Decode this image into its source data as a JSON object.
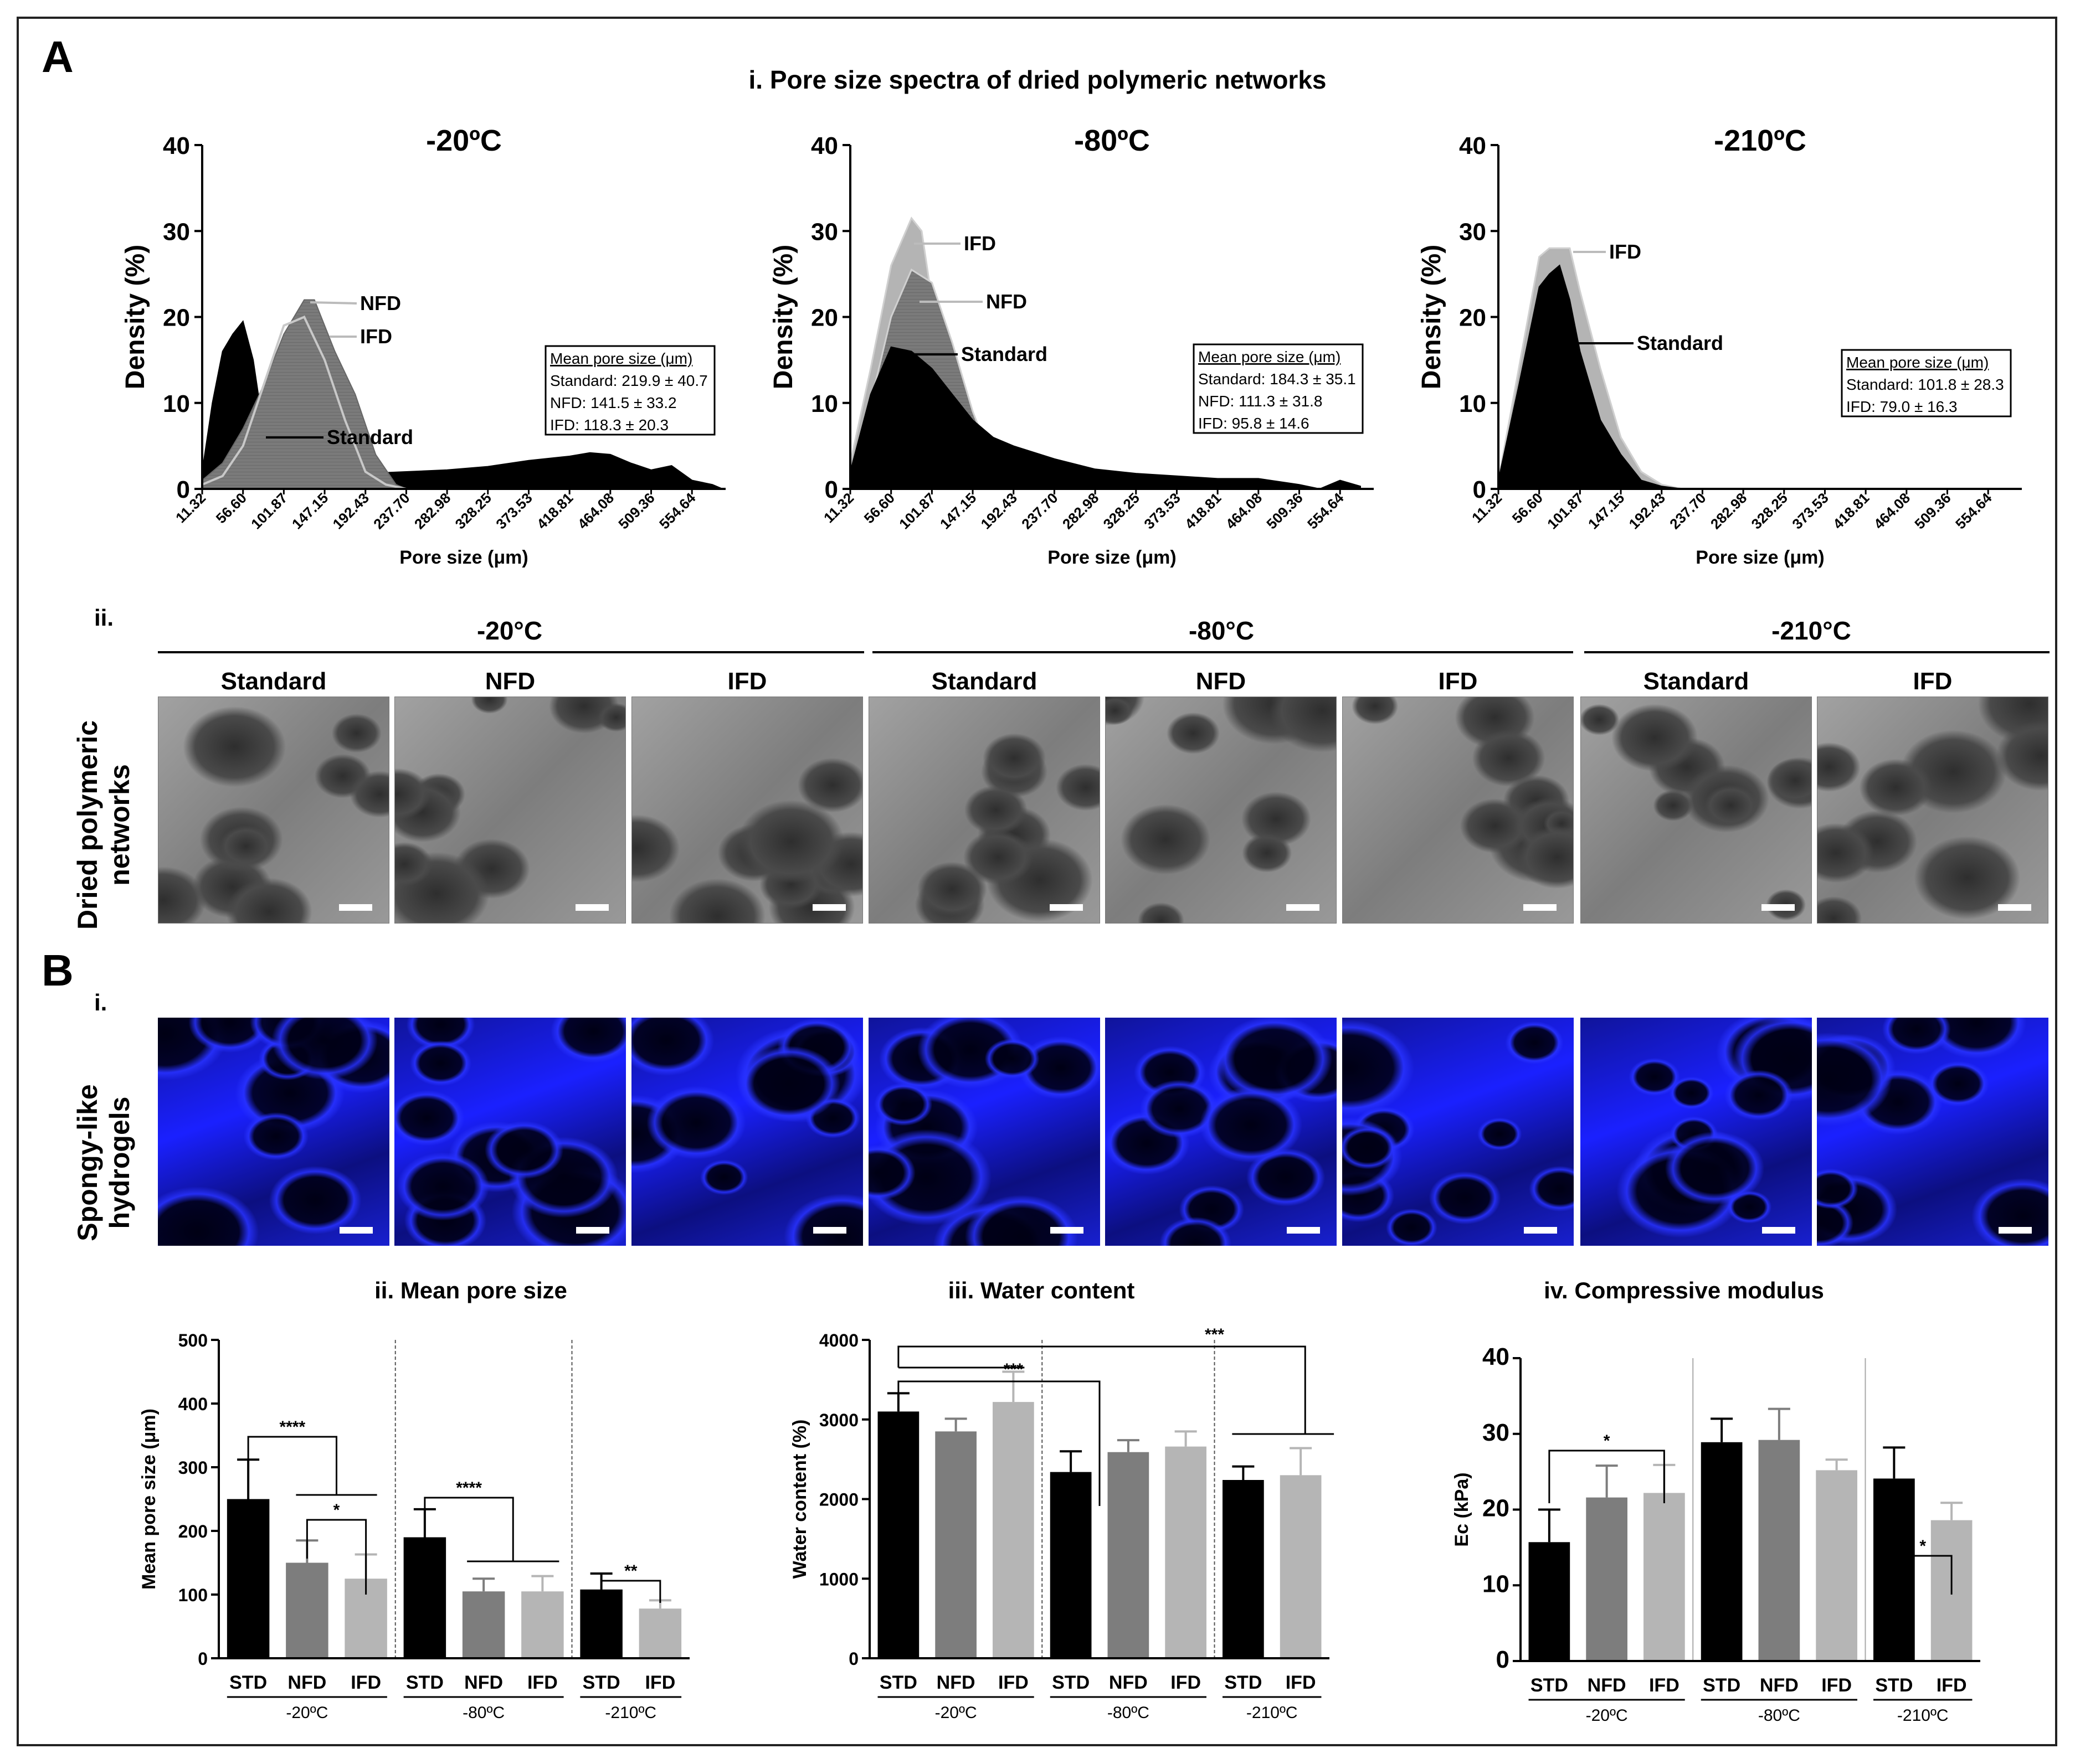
{
  "panel_labels": {
    "A": "A",
    "B": "B"
  },
  "sections": {
    "a_i_title": "i. Pore size spectra of dried polymeric networks",
    "a_ii": "ii.",
    "b_i": "i.",
    "b_ii_title": "ii. Mean pore size",
    "b_iii_title": "iii. Water content",
    "b_iv_title": "iv. Compressive modulus"
  },
  "row_labels": {
    "dried": [
      "Dried polymeric",
      "networks"
    ],
    "spongy": [
      "Spongy-like",
      "hydrogels"
    ]
  },
  "temperatures": [
    "-20°C",
    "-80°C",
    "-210°C"
  ],
  "image_columns": [
    "Standard",
    "NFD",
    "IFD",
    "Standard",
    "NFD",
    "IFD",
    "Standard",
    "IFD"
  ],
  "colors": {
    "standard": "#000000",
    "nfd": "#7a7a7a",
    "ifd": "#b4b4b4",
    "ifd_line": "#c8c8c8",
    "sem_gray": "#8d8d8d",
    "confocal_blue": "#1a20ff"
  },
  "chart_data": [
    {
      "type": "area",
      "title": "-20ºC",
      "xlabel": "Pore size (μm)",
      "ylabel": "Density (%)",
      "ylim": [
        0,
        40
      ],
      "yticks": [
        "0",
        "10",
        "20",
        "30",
        "40"
      ],
      "x": [
        "11.32",
        "56.60",
        "101.87",
        "147.15",
        "192.43",
        "237.70",
        "282.98",
        "328.25",
        "373.53",
        "418.81",
        "464.08",
        "509.36",
        "554.64"
      ],
      "series": [
        {
          "name": "Standard",
          "x": [
            11.32,
            22.64,
            33.96,
            45.28,
            56.6,
            67.92,
            79.23,
            90.55,
            101.87,
            124.51,
            147.15,
            192.43,
            237.7,
            282.98,
            328.25,
            373.53,
            418.81,
            441.45,
            464.08,
            486.72,
            509.36,
            532.0,
            554.64,
            577.28,
            588.6
          ],
          "y": [
            2,
            10,
            16,
            18,
            19.5,
            15,
            7,
            2,
            1,
            1,
            1.2,
            1.8,
            2,
            2.2,
            2.6,
            3.3,
            3.8,
            4.2,
            4,
            3,
            2.2,
            2.7,
            1,
            0.5,
            0
          ]
        },
        {
          "name": "NFD",
          "x": [
            11.32,
            33.96,
            56.6,
            79.23,
            101.87,
            124.51,
            135.83,
            158.47,
            181.11,
            203.75,
            226.39,
            237.7
          ],
          "y": [
            1,
            3,
            7,
            12,
            18,
            22,
            22,
            16,
            11,
            4,
            0.5,
            0
          ]
        },
        {
          "name": "IFD",
          "x": [
            11.32,
            33.96,
            56.6,
            79.23,
            101.87,
            124.51,
            147.15,
            169.79,
            192.43,
            215.07,
            237.7
          ],
          "y": [
            0.5,
            1.5,
            5,
            12,
            19,
            20,
            15,
            8,
            2,
            0.5,
            0
          ]
        }
      ],
      "box": {
        "title": "Mean pore size (μm)",
        "lines": [
          "Standard: 219.9 ± 40.7",
          "NFD: 141.5 ±  33.2",
          "IFD: 118.3 ± 20.3"
        ]
      },
      "callouts": [
        "NFD",
        "IFD",
        "Standard"
      ]
    },
    {
      "type": "area",
      "title": "-80ºC",
      "xlabel": "Pore size (μm)",
      "ylabel": "Density (%)",
      "ylim": [
        0,
        40
      ],
      "yticks": [
        "0",
        "10",
        "20",
        "30",
        "40"
      ],
      "x": [
        "11.32",
        "56.60",
        "101.87",
        "147.15",
        "192.43",
        "237.70",
        "282.98",
        "328.25",
        "373.53",
        "418.81",
        "464.08",
        "509.36",
        "554.64"
      ],
      "series": [
        {
          "name": "IFD",
          "x": [
            11.32,
            33.96,
            56.6,
            79.23,
            90.55,
            101.87,
            124.51,
            147.15,
            169.79,
            192.43,
            203.75
          ],
          "y": [
            3,
            14,
            26,
            31.5,
            30,
            22,
            13,
            7,
            2,
            0.5,
            0
          ]
        },
        {
          "name": "NFD",
          "x": [
            11.32,
            33.96,
            56.6,
            79.23,
            101.87,
            124.51,
            147.15,
            169.79,
            192.43
          ],
          "y": [
            2,
            10,
            20,
            25.5,
            24,
            17,
            9,
            3,
            0
          ]
        },
        {
          "name": "Standard",
          "x": [
            11.32,
            33.96,
            56.6,
            79.23,
            101.87,
            124.51,
            147.15,
            169.79,
            192.43,
            237.7,
            282.98,
            328.25,
            373.53,
            418.81,
            464.08,
            509.36,
            532.0,
            554.64,
            577.28
          ],
          "y": [
            2,
            11,
            16.5,
            16,
            14,
            11,
            8,
            6,
            5,
            3.5,
            2.3,
            1.8,
            1.5,
            1.2,
            1.2,
            0.5,
            0,
            1,
            0.3
          ]
        }
      ],
      "box": {
        "title": "Mean pore size (μm)",
        "lines": [
          "Standard: 184.3 ± 35.1",
          "NFD: 111.3 ±  31.8",
          "IFD: 95.8 ± 14.6"
        ]
      },
      "callouts": [
        "IFD",
        "NFD",
        "Standard"
      ]
    },
    {
      "type": "area",
      "title": "-210ºC",
      "xlabel": "Pore size (μm)",
      "ylabel": "Density (%)",
      "ylim": [
        0,
        40
      ],
      "yticks": [
        "0",
        "10",
        "20",
        "30",
        "40"
      ],
      "x": [
        "11.32",
        "56.60",
        "101.87",
        "147.15",
        "192.43",
        "237.70",
        "282.98",
        "328.25",
        "373.53",
        "418.81",
        "464.08",
        "509.36",
        "554.64"
      ],
      "series": [
        {
          "name": "IFD",
          "x": [
            11.32,
            33.96,
            56.6,
            67.92,
            90.55,
            101.87,
            124.51,
            147.15,
            169.79,
            192.43,
            215.07
          ],
          "y": [
            1,
            14,
            27,
            28,
            28,
            23,
            14,
            6,
            2,
            0.5,
            0
          ]
        },
        {
          "name": "Standard",
          "x": [
            11.32,
            33.96,
            56.6,
            67.92,
            79.23,
            90.55,
            101.87,
            124.51,
            147.15,
            169.79,
            192.43,
            215.07
          ],
          "y": [
            1,
            12,
            23.5,
            25,
            26,
            22,
            16,
            8,
            4,
            1,
            0.3,
            0
          ]
        }
      ],
      "box": {
        "title": "Mean pore size (μm)",
        "lines": [
          "Standard: 101.8 ± 28.3",
          "IFD: 79.0 ± 16.3"
        ]
      },
      "callouts": [
        "IFD",
        "Standard"
      ]
    },
    {
      "type": "bar",
      "ylabel": "Mean pore size (μm)",
      "ylim": [
        0,
        500
      ],
      "yticks": [
        "0",
        "100",
        "200",
        "300",
        "400",
        "500"
      ],
      "groups": [
        {
          "label": "-20ºC",
          "categories": [
            "STD",
            "NFD",
            "IFD"
          ],
          "values": [
            250,
            150,
            125
          ],
          "errors": [
            62,
            35,
            38
          ]
        },
        {
          "label": "-80ºC",
          "categories": [
            "STD",
            "NFD",
            "IFD"
          ],
          "values": [
            190,
            105,
            105
          ],
          "errors": [
            44,
            20,
            24
          ]
        },
        {
          "label": "-210ºC",
          "categories": [
            "STD",
            "IFD"
          ],
          "values": [
            108,
            78
          ],
          "errors": [
            25,
            13
          ]
        }
      ],
      "significance": [
        "****",
        "*",
        "****",
        "**"
      ]
    },
    {
      "type": "bar",
      "ylabel": "Water content (%)",
      "ylim": [
        0,
        4000
      ],
      "yticks": [
        "0",
        "1000",
        "2000",
        "3000",
        "4000"
      ],
      "groups": [
        {
          "label": "-20ºC",
          "categories": [
            "STD",
            "NFD",
            "IFD"
          ],
          "values": [
            3100,
            2850,
            3220
          ],
          "errors": [
            230,
            160,
            380
          ]
        },
        {
          "label": "-80ºC",
          "categories": [
            "STD",
            "NFD",
            "IFD"
          ],
          "values": [
            2340,
            2590,
            2660
          ],
          "errors": [
            260,
            150,
            190
          ]
        },
        {
          "label": "-210ºC",
          "categories": [
            "STD",
            "IFD"
          ],
          "values": [
            2240,
            2300
          ],
          "errors": [
            170,
            340
          ]
        }
      ],
      "significance": [
        "***",
        "***"
      ]
    },
    {
      "type": "bar",
      "ylabel": "Ec (kPa)",
      "ylim": [
        0,
        40
      ],
      "yticks": [
        "0",
        "10",
        "20",
        "30",
        "40"
      ],
      "groups": [
        {
          "label": "-20ºC",
          "categories": [
            "STD",
            "NFD",
            "IFD"
          ],
          "values": [
            15.7,
            21.6,
            22.2
          ],
          "errors": [
            4.3,
            4.2,
            3.7
          ]
        },
        {
          "label": "-80ºC",
          "categories": [
            "STD",
            "NFD",
            "IFD"
          ],
          "values": [
            28.9,
            29.2,
            25.2
          ],
          "errors": [
            3.1,
            4.1,
            1.4
          ]
        },
        {
          "label": "-210ºC",
          "categories": [
            "STD",
            "IFD"
          ],
          "values": [
            24.1,
            18.6
          ],
          "errors": [
            4.1,
            2.3
          ]
        }
      ],
      "significance": [
        "*",
        "*"
      ]
    }
  ]
}
